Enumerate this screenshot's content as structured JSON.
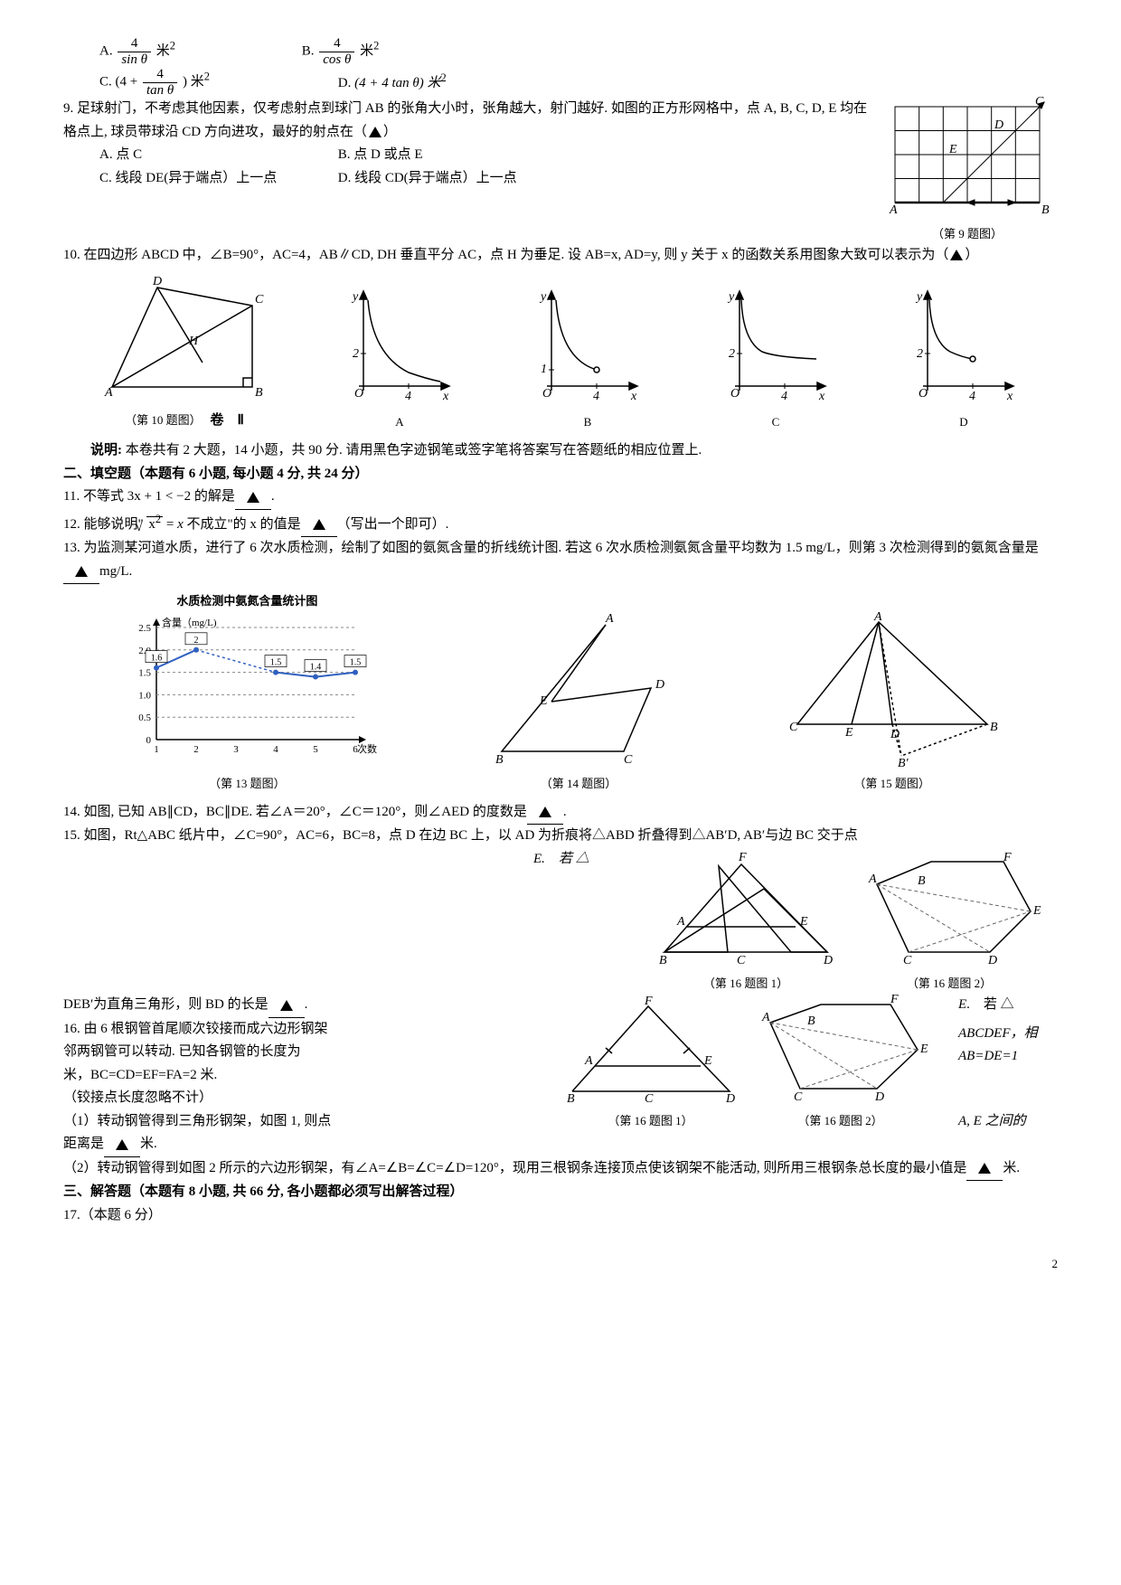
{
  "q8": {
    "optA_label": "A.",
    "optA_num": "4",
    "optA_den": "sin θ",
    "optA_suffix": "米",
    "optB_label": "B.",
    "optB_num": "4",
    "optB_den": "cos θ",
    "optB_suffix": "米",
    "optC_label": "C.",
    "optC_prefix": "(4 +",
    "optC_num": "4",
    "optC_den": "tan θ",
    "optC_suffix": ") 米",
    "optD_label": "D.",
    "optD_text": "(4 + 4 tan θ) 米",
    "sup2": "2"
  },
  "q9": {
    "text": "9. 足球射门，不考虑其他因素，仅考虑射点到球门 AB 的张角大小时，张角越大，射门越好. 如图的正方形网格中，点 A, B, C, D, E 均在格点上, 球员带球沿 CD 方向进攻，最好的射点在（",
    "text_end": "）",
    "optA": "A. 点 C",
    "optB": "B. 点 D 或点 E",
    "optC": "C. 线段 DE(异于端点）上一点",
    "optD": "D. 线段 CD(异于端点）上一点",
    "caption": "（第 9 题图）",
    "labels": {
      "A": "A",
      "B": "B",
      "C": "C",
      "D": "D",
      "E": "E"
    }
  },
  "q10": {
    "text1": "10. 在四边形 ABCD 中，∠B=90°，AC=4，AB∥CD, DH 垂直平分 AC，点 H 为垂足. 设 AB=x, AD=y, 则 y 关于 x 的函数关系用图象大致可以表示为（",
    "text_end": "）",
    "caption": "（第 10 题图）",
    "juan": "卷　Ⅱ",
    "optA": "A",
    "optB": "B",
    "optC": "C",
    "optD": "D",
    "geom": {
      "A": "A",
      "B": "B",
      "C": "C",
      "D": "D",
      "H": "H"
    },
    "axis": {
      "y": "y",
      "x": "x",
      "O": "O",
      "v2": "2",
      "v1": "1",
      "v4": "4"
    }
  },
  "instructions": "说明: 本卷共有 2 大题，14 小题，共 90 分. 请用黑色字迹钢笔或签字笔将答案写在答题纸的相应位置上.",
  "sec2_title": "二、填空题（本题有 6 小题, 每小题 4 分, 共 24 分）",
  "q11": {
    "text": "11. 不等式 3x + 1 < −2 的解是",
    "end": "."
  },
  "q12": {
    "text1": "12. 能够说明\"",
    "formula": "√x² = x",
    "text2": " 不成立\"的 x 的值是",
    "text3": "（写出一个即可）."
  },
  "q13": {
    "text": "13. 为监测某河道水质，进行了 6 次水质检测，绘制了如图的氨氮含量的折线统计图. 若这 6 次水质检测氨氮含量平均数为 1.5 mg/L，则第 3 次检测得到的氨氮含量是",
    "unit": "mg/L.",
    "title": "水质检测中氨氮含量统计图",
    "ylabel": "含量（mg/L)",
    "xlabel": "次数",
    "yticks": [
      "0",
      "0.5",
      "1.0",
      "1.5",
      "2.0",
      "2.5"
    ],
    "xticks": [
      "1",
      "2",
      "3",
      "4",
      "5",
      "6"
    ],
    "data_labels": [
      "1.6",
      "2",
      "1.5",
      "1.4",
      "1.5"
    ],
    "data_y": [
      1.6,
      2.0,
      null,
      1.5,
      1.4,
      1.5
    ],
    "caption": "（第 13 题图）"
  },
  "q14": {
    "text": "14. 如图, 已知 AB∥CD，BC∥DE. 若∠A＝20°，∠C＝120°，则∠AED 的度数是",
    "end": ".",
    "caption": "（第 14 题图）",
    "pts": {
      "A": "A",
      "B": "B",
      "C": "C",
      "D": "D",
      "E": "E"
    }
  },
  "q15": {
    "text1": "15. 如图，Rt△ABC 纸片中，∠C=90°，AC=6，BC=8，点 D 在边 BC 上，以 AD 为折痕将△ABD 折叠得到△AB′D, AB′与边 BC 交于点",
    "text_E": "E.　若 △",
    "text2": "DEB′为直角三角形，则 BD 的长是",
    "end": ".",
    "caption": "（第 15 题图）",
    "pts": {
      "A": "A",
      "B": "B",
      "Bp": "B′",
      "C": "C",
      "D": "D",
      "E": "E"
    }
  },
  "q16": {
    "text1": "16. 由 6 根钢管首尾顺次铰接而成六边形钢架",
    "text1b": "ABCDEF，相",
    "text2": "邻两钢管可以转动. 已知各钢管的长度为",
    "text2b": "AB=DE=1",
    "text3": "米，BC=CD=EF=FA=2 米.",
    "text4": "（铰接点长度忽略不计）",
    "sub1a": "（1）转动钢管得到三角形钢架，如图 1, 则点",
    "sub1b": "A, E 之间的",
    "sub1c": "距离是",
    "sub1_end": "米.",
    "sub2": "（2）转动钢管得到如图 2 所示的六边形钢架，有∠A=∠B=∠C=∠D=120°，现用三根钢条连接顶点使该钢架不能活动, 则所用三根钢条总长度的最小值是",
    "sub2_end": "米.",
    "cap1": "（第 16 题图 1）",
    "cap2": "（第 16 题图 2）",
    "pts": {
      "A": "A",
      "B": "B",
      "C": "C",
      "D": "D",
      "E": "E",
      "F": "F"
    }
  },
  "sec3_title": "三、解答题（本题有 8 小题, 共 66 分, 各小题都必须写出解答过程）",
  "q17": "17.（本题 6 分）",
  "page": "2",
  "colors": {
    "chart_line": "#3060c0",
    "chart_grid": "#888",
    "hex_dash": "#666"
  }
}
